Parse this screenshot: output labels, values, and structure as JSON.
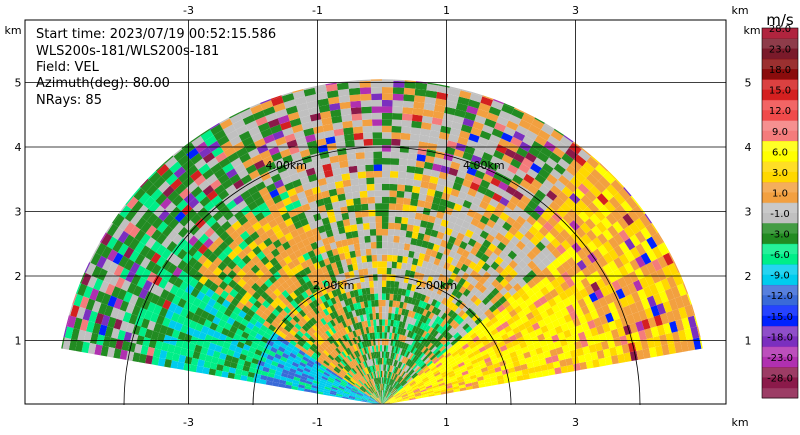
{
  "chart_data": {
    "type": "heatmap",
    "title_lines": [
      "Start time: 2023/07/19 00:52:15.586",
      "WLS200s-181/WLS200s-181",
      "Field: VEL",
      "Azimuth(deg): 80.00",
      "NRays: 85"
    ],
    "xlabel": "km",
    "ylabel": "km",
    "x_ticks": [
      -3,
      -1,
      1,
      3
    ],
    "y_ticks": [
      1,
      2,
      3,
      4,
      5
    ],
    "xlim": [
      -5.05,
      5.05
    ],
    "ylim": [
      0,
      5.05
    ],
    "grid": true,
    "range_rings": [
      {
        "label": "2.00km",
        "range_km": 2
      },
      {
        "label": "4.00km",
        "range_km": 4
      }
    ],
    "sector_deg": [
      10,
      170
    ],
    "max_range_km": 5.05,
    "colorbar": {
      "unit": "m/s",
      "ticks": [
        "28.0",
        "23.0",
        "18.0",
        "15.0",
        "12.0",
        "9.0",
        "6.0",
        "3.0",
        "1.0",
        "-1.0",
        "-3.0",
        "-6.0",
        "-9.0",
        "-12.0",
        "-15.0",
        "-18.0",
        "-23.0",
        "-28.0"
      ],
      "colors": [
        "#b0243e",
        "#7a1a2a",
        "#8a0c0c",
        "#d42020",
        "#f04a4a",
        "#f47c7c",
        "#ffff00",
        "#ffd800",
        "#f2a040",
        "#c0c0c0",
        "#228b22",
        "#00ee88",
        "#00ccee",
        "#3a6ad8",
        "#0022ff",
        "#7b2fbf",
        "#b030b0",
        "#8b1a4a"
      ]
    }
  }
}
